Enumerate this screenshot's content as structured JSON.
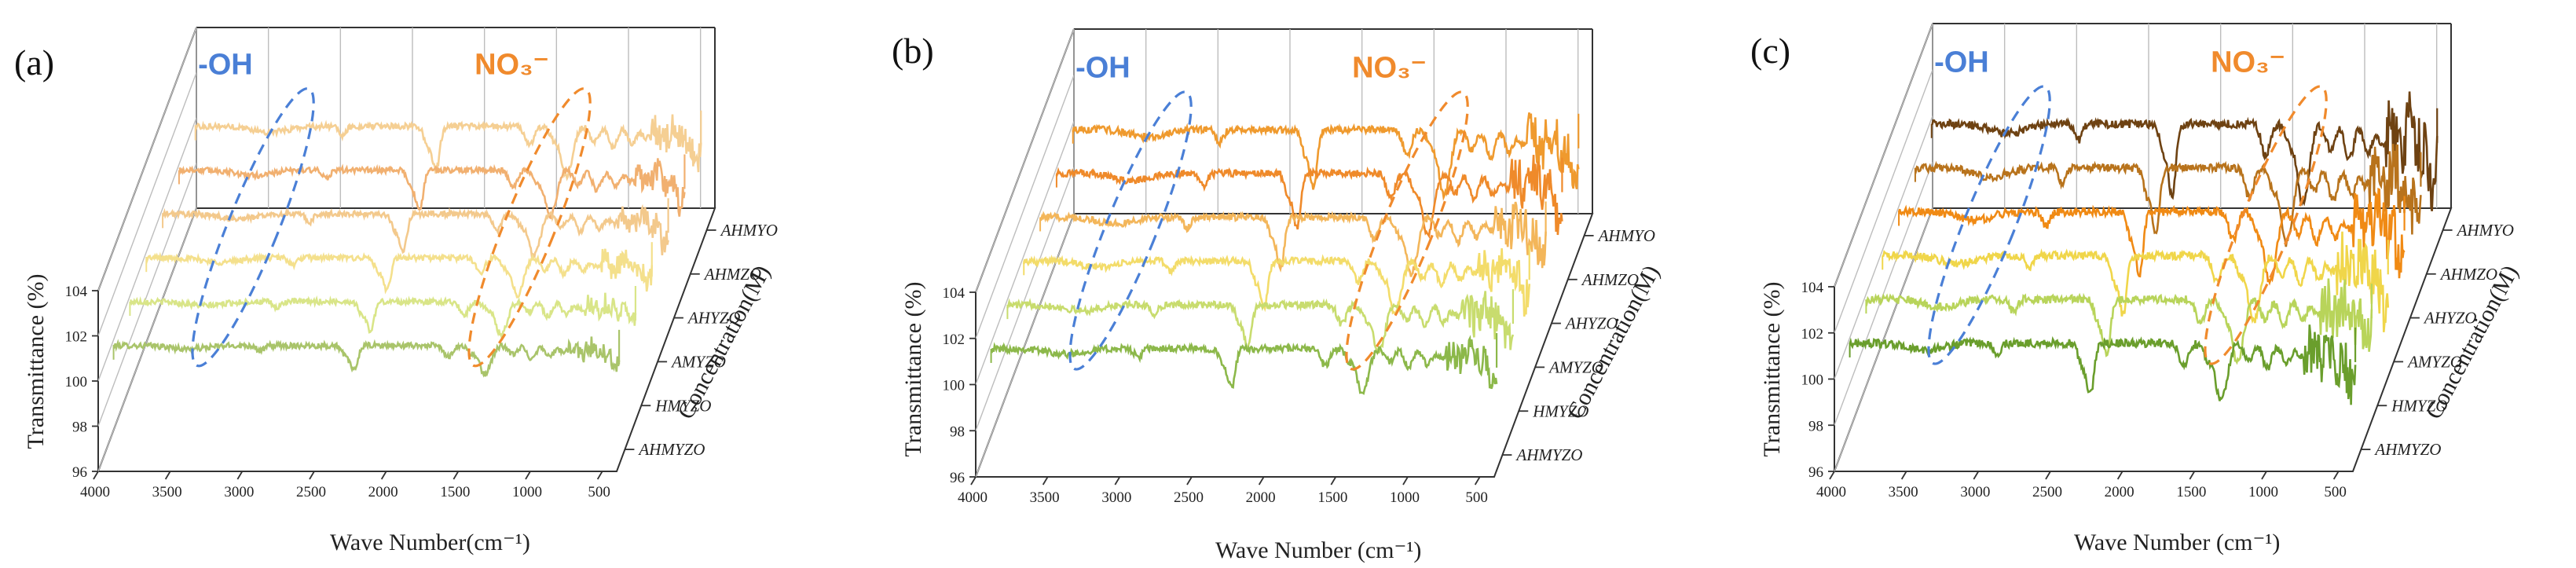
{
  "colors": {
    "oh_annotation": "#4a7fd6",
    "no3_annotation": "#f08a2c",
    "axis": "#333333",
    "grid": "#bdbdbd"
  },
  "chart_data": [
    {
      "type": "line",
      "panel_label": "(a)",
      "xlabel": "Wave Number(cm⁻¹)",
      "ylabel": "Transmittance (%)",
      "zlabel": "Concentration(M)",
      "x_ticks": [
        "4000",
        "3500",
        "3000",
        "2500",
        "2000",
        "1500",
        "1000",
        "500"
      ],
      "xlim": [
        4000,
        400
      ],
      "y_ticks": [
        "96",
        "98",
        "100",
        "102",
        "104"
      ],
      "ylim": [
        96,
        104
      ],
      "annotations": [
        {
          "text": "-OH",
          "center_wavenumber": 3300
        },
        {
          "text": "NO₃⁻",
          "center_wavenumber": 1380
        }
      ],
      "series": [
        {
          "name": "AHMYZO",
          "color": "#a9c46a",
          "baseline": 100.6,
          "noise": 0.25
        },
        {
          "name": "HMYZO",
          "color": "#d9e588",
          "baseline": 100.6,
          "noise": 0.25
        },
        {
          "name": "AMYZO",
          "color": "#f4e08c",
          "baseline": 100.6,
          "noise": 0.25
        },
        {
          "name": "AHYZO",
          "color": "#f3c98c",
          "baseline": 100.6,
          "noise": 0.25
        },
        {
          "name": "AHMZO",
          "color": "#f1b070",
          "baseline": 100.6,
          "noise": 0.25
        },
        {
          "name": "AHMYO",
          "color": "#f5cf93",
          "baseline": 100.6,
          "noise": 0.25
        }
      ]
    },
    {
      "type": "line",
      "panel_label": "(b)",
      "xlabel": "Wave Number (cm⁻¹)",
      "ylabel": "Transmittance (%)",
      "zlabel": "Concentration(M)",
      "x_ticks": [
        "4000",
        "3500",
        "3000",
        "2500",
        "2000",
        "1500",
        "1000",
        "500"
      ],
      "xlim": [
        4000,
        400
      ],
      "y_ticks": [
        "96",
        "98",
        "100",
        "102",
        "104"
      ],
      "ylim": [
        96,
        104
      ],
      "annotations": [
        {
          "text": "-OH",
          "center_wavenumber": 3300
        },
        {
          "text": "NO₃⁻",
          "center_wavenumber": 1380
        }
      ],
      "series": [
        {
          "name": "AHMYZO",
          "color": "#8cb84a",
          "baseline": 100.6,
          "noise": 0.3
        },
        {
          "name": "HMYZO",
          "color": "#c8dc6e",
          "baseline": 100.6,
          "noise": 0.3
        },
        {
          "name": "AMYZO",
          "color": "#f3dc6a",
          "baseline": 100.6,
          "noise": 0.3
        },
        {
          "name": "AHYZO",
          "color": "#f3b65a",
          "baseline": 100.6,
          "noise": 0.3
        },
        {
          "name": "AHMZO",
          "color": "#ef8a2a",
          "baseline": 100.6,
          "noise": 0.3
        },
        {
          "name": "AHMYO",
          "color": "#ef9a2e",
          "baseline": 100.6,
          "noise": 0.3
        }
      ]
    },
    {
      "type": "line",
      "panel_label": "(c)",
      "xlabel": "Wave Number (cm⁻¹)",
      "ylabel": "Transmittance (%)",
      "zlabel": "Concentration(M)",
      "x_ticks": [
        "4000",
        "3500",
        "3000",
        "2500",
        "2000",
        "1500",
        "1000",
        "500"
      ],
      "xlim": [
        4000,
        400
      ],
      "y_ticks": [
        "96",
        "98",
        "100",
        "102",
        "104"
      ],
      "ylim": [
        96,
        104
      ],
      "annotations": [
        {
          "text": "-OH",
          "center_wavenumber": 3300
        },
        {
          "text": "NO₃⁻",
          "center_wavenumber": 1380
        }
      ],
      "series": [
        {
          "name": "AHMYZO",
          "color": "#6a9e2c",
          "baseline": 100.6,
          "noise": 0.35
        },
        {
          "name": "HMYZO",
          "color": "#b8d45a",
          "baseline": 100.6,
          "noise": 0.35
        },
        {
          "name": "AMYZO",
          "color": "#f0d64a",
          "baseline": 100.6,
          "noise": 0.35
        },
        {
          "name": "AHYZO",
          "color": "#f08a14",
          "baseline": 100.6,
          "noise": 0.35
        },
        {
          "name": "AHMZO",
          "color": "#b8731c",
          "baseline": 100.6,
          "noise": 0.35
        },
        {
          "name": "AHMYO",
          "color": "#6e4212",
          "baseline": 100.6,
          "noise": 0.35
        }
      ]
    }
  ]
}
